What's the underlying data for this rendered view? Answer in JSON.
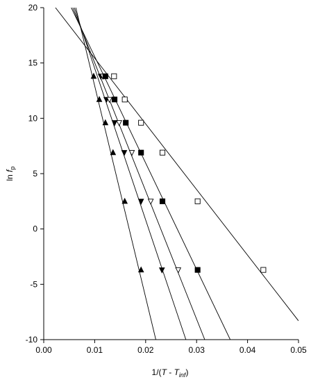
{
  "chart_data": {
    "type": "scatter",
    "xlabel": [
      "1/(",
      "T",
      " - ",
      "T",
      "inf",
      ")"
    ],
    "ylabel": [
      "ln ",
      "f",
      "p"
    ],
    "xlim": [
      0,
      0.05
    ],
    "ylim": [
      -10,
      20
    ],
    "xticks": [
      {
        "value": 0,
        "label": "0.00"
      },
      {
        "value": 0.01,
        "label": "0.01"
      },
      {
        "value": 0.02,
        "label": "0.02"
      },
      {
        "value": 0.03,
        "label": "0.03"
      },
      {
        "value": 0.04,
        "label": "0.04"
      },
      {
        "value": 0.05,
        "label": "0.05"
      }
    ],
    "yticks": [
      -10,
      -5,
      0,
      5,
      10,
      15,
      20
    ],
    "series": [
      {
        "marker": "triangle-up",
        "filled": true,
        "color": "#000000",
        "x": [
          0.0098,
          0.0109,
          0.0121,
          0.0136,
          0.0159,
          0.0191
        ],
        "values": [
          13.8,
          11.7,
          9.6,
          6.9,
          2.5,
          -3.7
        ]
      },
      {
        "marker": "triangle-down",
        "filled": true,
        "color": "#000000",
        "x": [
          0.0112,
          0.0123,
          0.0139,
          0.0158,
          0.0191,
          0.0232
        ],
        "values": [
          13.8,
          11.7,
          9.6,
          6.9,
          2.5,
          -3.7
        ]
      },
      {
        "marker": "triangle-down",
        "filled": false,
        "color": "#000000",
        "x": [
          0.0116,
          0.0129,
          0.0148,
          0.0173,
          0.021,
          0.0264
        ],
        "values": [
          13.8,
          11.7,
          9.6,
          6.9,
          2.5,
          -3.7
        ]
      },
      {
        "marker": "square",
        "filled": true,
        "color": "#000000",
        "x": [
          0.0121,
          0.0139,
          0.0161,
          0.0191,
          0.0233,
          0.0302
        ],
        "values": [
          13.8,
          11.7,
          9.6,
          6.9,
          2.5,
          -3.7
        ]
      },
      {
        "marker": "square",
        "filled": false,
        "color": "#000000",
        "x": [
          0.0138,
          0.0159,
          0.0191,
          0.0233,
          0.0302,
          0.0431
        ],
        "values": [
          13.8,
          11.7,
          9.6,
          6.9,
          2.5,
          -3.7
        ]
      }
    ],
    "fit_lines": [
      {
        "x": [
          0.0063,
          0.022
        ],
        "y": [
          20,
          -10
        ]
      },
      {
        "x": [
          0.006,
          0.0279
        ],
        "y": [
          20,
          -10
        ]
      },
      {
        "x": [
          0.0057,
          0.0316
        ],
        "y": [
          20,
          -10
        ]
      },
      {
        "x": [
          0.0054,
          0.0366
        ],
        "y": [
          20,
          -10
        ]
      },
      {
        "x": [
          0.0023,
          0.05
        ],
        "y": [
          20,
          -8.3
        ]
      }
    ]
  }
}
